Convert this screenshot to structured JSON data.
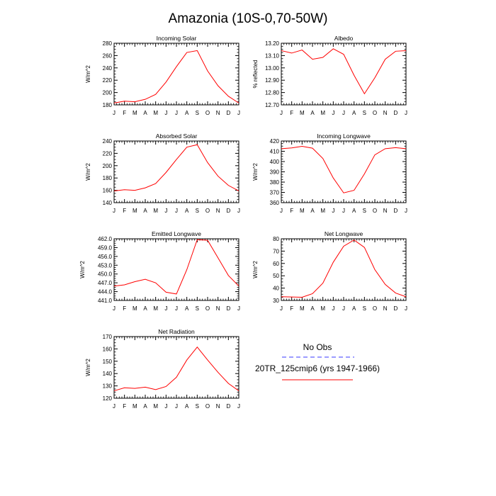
{
  "figure": {
    "title": "Amazonia (10S-0,70-50W)",
    "legend": [
      {
        "label": "No Obs",
        "color": "#3a3aff",
        "style": "dashed"
      },
      {
        "label": "20TR_125cmip6 (yrs 1947-1966)",
        "color": "#ff0000",
        "style": "solid"
      }
    ]
  },
  "chart_data": [
    {
      "type": "line",
      "title": "Incoming Solar",
      "ylabel": "W/m^2",
      "categories": [
        "J",
        "F",
        "M",
        "A",
        "M",
        "J",
        "J",
        "A",
        "S",
        "O",
        "N",
        "D",
        "J"
      ],
      "ylim": [
        180,
        280
      ],
      "yticks": [
        180,
        200,
        220,
        240,
        260,
        280
      ],
      "ytick_labels": [
        "180",
        "200",
        "220",
        "240",
        "260",
        "280"
      ],
      "series": [
        {
          "name": "20TR_125cmip6 (yrs 1947-1966)",
          "color": "#ff0000",
          "values": [
            183,
            186,
            185,
            189,
            197,
            217,
            242,
            265,
            268,
            235,
            211,
            194,
            183
          ]
        }
      ]
    },
    {
      "type": "line",
      "title": "Albedo",
      "ylabel": "% reflected",
      "categories": [
        "J",
        "F",
        "M",
        "A",
        "M",
        "J",
        "J",
        "A",
        "S",
        "O",
        "N",
        "D",
        "J"
      ],
      "ylim": [
        12.7,
        13.2
      ],
      "yticks": [
        12.7,
        12.8,
        12.9,
        13.0,
        13.1,
        13.2
      ],
      "ytick_labels": [
        "12.70",
        "12.80",
        "12.90",
        "13.00",
        "13.10",
        "13.20"
      ],
      "series": [
        {
          "name": "20TR_125cmip6 (yrs 1947-1966)",
          "color": "#ff0000",
          "values": [
            13.14,
            13.12,
            13.145,
            13.07,
            13.085,
            13.155,
            13.11,
            12.94,
            12.79,
            12.92,
            13.07,
            13.135,
            13.14
          ]
        }
      ]
    },
    {
      "type": "line",
      "title": "Absorbed Solar",
      "ylabel": "W/m^2",
      "categories": [
        "J",
        "F",
        "M",
        "A",
        "M",
        "J",
        "J",
        "A",
        "S",
        "O",
        "N",
        "D",
        "J"
      ],
      "ylim": [
        140,
        240
      ],
      "yticks": [
        140,
        160,
        180,
        200,
        220,
        240
      ],
      "ytick_labels": [
        "140",
        "160",
        "180",
        "200",
        "220",
        "240"
      ],
      "series": [
        {
          "name": "20TR_125cmip6 (yrs 1947-1966)",
          "color": "#ff0000",
          "values": [
            159,
            161,
            160,
            164,
            171,
            189,
            210,
            230,
            234,
            205,
            183,
            168,
            159
          ]
        }
      ]
    },
    {
      "type": "line",
      "title": "Incoming Longwave",
      "ylabel": "W/m^2",
      "categories": [
        "J",
        "F",
        "M",
        "A",
        "M",
        "J",
        "J",
        "A",
        "S",
        "O",
        "N",
        "D",
        "J"
      ],
      "ylim": [
        360,
        420
      ],
      "yticks": [
        360,
        370,
        380,
        390,
        400,
        410,
        420
      ],
      "ytick_labels": [
        "360",
        "370",
        "380",
        "390",
        "400",
        "410",
        "420"
      ],
      "series": [
        {
          "name": "20TR_125cmip6 (yrs 1947-1966)",
          "color": "#ff0000",
          "values": [
            412.5,
            413.3,
            414.8,
            413,
            403,
            384,
            369.5,
            372,
            388,
            406.5,
            412.5,
            413.5,
            412.5
          ]
        }
      ]
    },
    {
      "type": "line",
      "title": "Emitted Longwave",
      "ylabel": "W/m^2",
      "categories": [
        "J",
        "F",
        "M",
        "A",
        "M",
        "J",
        "J",
        "A",
        "S",
        "O",
        "N",
        "D",
        "J"
      ],
      "ylim": [
        441,
        462
      ],
      "yticks": [
        441,
        444,
        447,
        450,
        453,
        456,
        459,
        462
      ],
      "ytick_labels": [
        "441.0",
        "444.0",
        "447.0",
        "450.0",
        "453.0",
        "456.0",
        "459.0",
        "462.0"
      ],
      "series": [
        {
          "name": "20TR_125cmip6 (yrs 1947-1966)",
          "color": "#ff0000",
          "values": [
            445.9,
            446.3,
            447.4,
            448.2,
            447.0,
            443.8,
            443.2,
            451.5,
            461.7,
            461.5,
            455.5,
            449.5,
            445.9
          ]
        }
      ]
    },
    {
      "type": "line",
      "title": "Net Longwave",
      "ylabel": "W/m^2",
      "categories": [
        "J",
        "F",
        "M",
        "A",
        "M",
        "J",
        "J",
        "A",
        "S",
        "O",
        "N",
        "D",
        "J"
      ],
      "ylim": [
        30,
        80
      ],
      "yticks": [
        30,
        40,
        50,
        60,
        70,
        80
      ],
      "ytick_labels": [
        "30",
        "40",
        "50",
        "60",
        "70",
        "80"
      ],
      "series": [
        {
          "name": "20TR_125cmip6 (yrs 1947-1966)",
          "color": "#ff0000",
          "values": [
            33,
            32.8,
            32.6,
            35.5,
            44,
            61,
            74,
            79,
            73,
            55,
            43,
            36,
            33
          ]
        }
      ]
    },
    {
      "type": "line",
      "title": "Net Radiation",
      "ylabel": "W/m^2",
      "categories": [
        "J",
        "F",
        "M",
        "A",
        "M",
        "J",
        "J",
        "A",
        "S",
        "O",
        "N",
        "D",
        "J"
      ],
      "ylim": [
        120,
        170
      ],
      "yticks": [
        120,
        130,
        140,
        150,
        160,
        170
      ],
      "ytick_labels": [
        "120",
        "130",
        "140",
        "150",
        "160",
        "170"
      ],
      "series": [
        {
          "name": "20TR_125cmip6 (yrs 1947-1966)",
          "color": "#ff0000",
          "values": [
            126,
            128.5,
            128,
            129,
            127,
            129.5,
            137,
            151,
            161.5,
            151,
            141,
            132,
            126
          ]
        }
      ]
    }
  ]
}
